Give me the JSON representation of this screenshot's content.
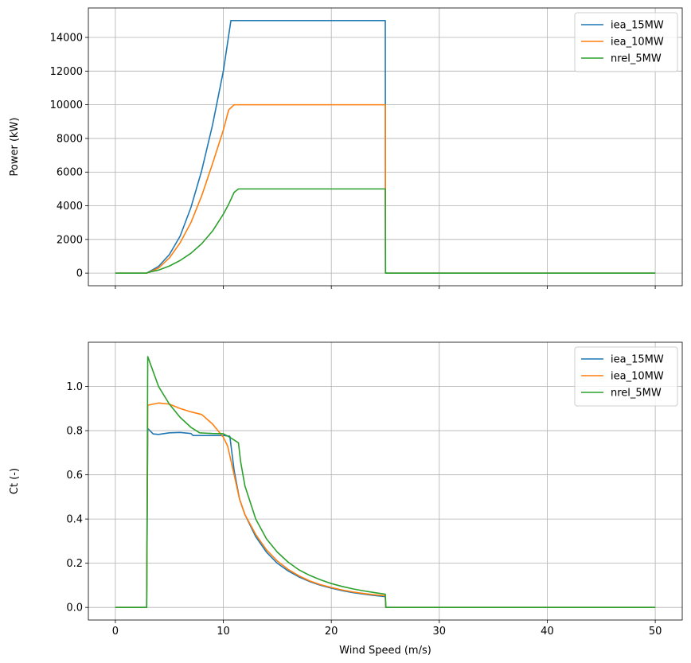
{
  "chart_data": [
    {
      "type": "line",
      "title": "",
      "xlabel": "",
      "ylabel": "Power (kW)",
      "xlim": [
        -2.5,
        52.5
      ],
      "ylim": [
        -750,
        15750
      ],
      "xticks": [
        0,
        10,
        20,
        30,
        40,
        50
      ],
      "show_xtick_labels": false,
      "yticks": [
        0,
        2000,
        4000,
        6000,
        8000,
        10000,
        12000,
        14000
      ],
      "grid": true,
      "legend": "top-right",
      "series": [
        {
          "name": "iea_15MW",
          "color": "#1f77b4",
          "points": [
            [
              0,
              0
            ],
            [
              2.9,
              0
            ],
            [
              3,
              30
            ],
            [
              4,
              400
            ],
            [
              5,
              1100
            ],
            [
              6,
              2200
            ],
            [
              7,
              3900
            ],
            [
              8,
              6100
            ],
            [
              9,
              8800
            ],
            [
              10,
              12000
            ],
            [
              10.7,
              15000
            ],
            [
              11,
              15000
            ],
            [
              15,
              15000
            ],
            [
              20,
              15000
            ],
            [
              25,
              15000
            ],
            [
              25.02,
              0
            ],
            [
              30,
              0
            ],
            [
              40,
              0
            ],
            [
              50,
              0
            ]
          ]
        },
        {
          "name": "iea_10MW",
          "color": "#ff7f0e",
          "points": [
            [
              0,
              0
            ],
            [
              2.9,
              0
            ],
            [
              3,
              20
            ],
            [
              4,
              300
            ],
            [
              5,
              900
            ],
            [
              6,
              1800
            ],
            [
              7,
              3000
            ],
            [
              8,
              4600
            ],
            [
              9,
              6500
            ],
            [
              10,
              8500
            ],
            [
              10.5,
              9700
            ],
            [
              11,
              10000
            ],
            [
              15,
              10000
            ],
            [
              20,
              10000
            ],
            [
              25,
              10000
            ],
            [
              25.02,
              0
            ],
            [
              30,
              0
            ],
            [
              40,
              0
            ],
            [
              50,
              0
            ]
          ]
        },
        {
          "name": "nrel_5MW",
          "color": "#2ca02c",
          "points": [
            [
              0,
              0
            ],
            [
              2.9,
              0
            ],
            [
              3,
              40
            ],
            [
              4,
              180
            ],
            [
              5,
              420
            ],
            [
              6,
              750
            ],
            [
              7,
              1180
            ],
            [
              8,
              1750
            ],
            [
              9,
              2500
            ],
            [
              10,
              3500
            ],
            [
              10.5,
              4100
            ],
            [
              11,
              4800
            ],
            [
              11.4,
              5000
            ],
            [
              15,
              5000
            ],
            [
              20,
              5000
            ],
            [
              25,
              5000
            ],
            [
              25.02,
              0
            ],
            [
              30,
              0
            ],
            [
              40,
              0
            ],
            [
              50,
              0
            ]
          ]
        }
      ]
    },
    {
      "type": "line",
      "title": "",
      "xlabel": "Wind Speed (m/s)",
      "ylabel": "Ct (-)",
      "xlim": [
        -2.5,
        52.5
      ],
      "ylim": [
        -0.057,
        1.2
      ],
      "xticks": [
        0,
        10,
        20,
        30,
        40,
        50
      ],
      "yticks": [
        0.0,
        0.2,
        0.4,
        0.6,
        0.8,
        1.0
      ],
      "ytick_labels": [
        "0.0",
        "0.2",
        "0.4",
        "0.6",
        "0.8",
        "1.0"
      ],
      "grid": true,
      "legend": "top-right",
      "series": [
        {
          "name": "iea_15MW",
          "color": "#1f77b4",
          "points": [
            [
              0,
              0
            ],
            [
              2.9,
              0
            ],
            [
              3,
              0.81
            ],
            [
              3.5,
              0.785
            ],
            [
              4,
              0.783
            ],
            [
              5,
              0.79
            ],
            [
              6,
              0.792
            ],
            [
              7,
              0.787
            ],
            [
              7.2,
              0.778
            ],
            [
              8,
              0.778
            ],
            [
              9,
              0.778
            ],
            [
              10,
              0.778
            ],
            [
              10.6,
              0.775
            ],
            [
              11,
              0.62
            ],
            [
              11.5,
              0.49
            ],
            [
              12,
              0.42
            ],
            [
              13,
              0.32
            ],
            [
              14,
              0.25
            ],
            [
              15,
              0.2
            ],
            [
              16,
              0.165
            ],
            [
              17,
              0.138
            ],
            [
              18,
              0.117
            ],
            [
              19,
              0.1
            ],
            [
              20,
              0.087
            ],
            [
              21,
              0.076
            ],
            [
              22,
              0.067
            ],
            [
              23,
              0.06
            ],
            [
              24,
              0.054
            ],
            [
              25,
              0.049
            ],
            [
              25.05,
              0
            ],
            [
              30,
              0
            ],
            [
              40,
              0
            ],
            [
              50,
              0
            ]
          ]
        },
        {
          "name": "iea_10MW",
          "color": "#ff7f0e",
          "points": [
            [
              0,
              0
            ],
            [
              2.9,
              0
            ],
            [
              3,
              0.915
            ],
            [
              4,
              0.925
            ],
            [
              5,
              0.92
            ],
            [
              6,
              0.9
            ],
            [
              7,
              0.885
            ],
            [
              8,
              0.873
            ],
            [
              9,
              0.83
            ],
            [
              10,
              0.77
            ],
            [
              10.4,
              0.73
            ],
            [
              11,
              0.6
            ],
            [
              11.5,
              0.49
            ],
            [
              12,
              0.42
            ],
            [
              13,
              0.33
            ],
            [
              14,
              0.26
            ],
            [
              15,
              0.21
            ],
            [
              16,
              0.172
            ],
            [
              17,
              0.143
            ],
            [
              18,
              0.12
            ],
            [
              19,
              0.103
            ],
            [
              20,
              0.09
            ],
            [
              21,
              0.079
            ],
            [
              22,
              0.07
            ],
            [
              23,
              0.063
            ],
            [
              24,
              0.057
            ],
            [
              25,
              0.053
            ],
            [
              25.05,
              0
            ],
            [
              30,
              0
            ],
            [
              40,
              0
            ],
            [
              50,
              0
            ]
          ]
        },
        {
          "name": "nrel_5MW",
          "color": "#2ca02c",
          "points": [
            [
              0,
              0
            ],
            [
              2.9,
              0
            ],
            [
              3,
              1.135
            ],
            [
              4,
              1.0
            ],
            [
              5,
              0.92
            ],
            [
              6,
              0.86
            ],
            [
              7,
              0.815
            ],
            [
              7.8,
              0.79
            ],
            [
              9,
              0.787
            ],
            [
              10,
              0.786
            ],
            [
              10.6,
              0.77
            ],
            [
              11.4,
              0.745
            ],
            [
              11.6,
              0.66
            ],
            [
              12,
              0.55
            ],
            [
              13,
              0.4
            ],
            [
              14,
              0.31
            ],
            [
              15,
              0.25
            ],
            [
              16,
              0.205
            ],
            [
              17,
              0.17
            ],
            [
              18,
              0.145
            ],
            [
              19,
              0.125
            ],
            [
              20,
              0.108
            ],
            [
              21,
              0.095
            ],
            [
              22,
              0.084
            ],
            [
              23,
              0.075
            ],
            [
              24,
              0.067
            ],
            [
              25,
              0.06
            ],
            [
              25.05,
              0
            ],
            [
              30,
              0
            ],
            [
              40,
              0
            ],
            [
              50,
              0
            ]
          ]
        }
      ]
    }
  ]
}
